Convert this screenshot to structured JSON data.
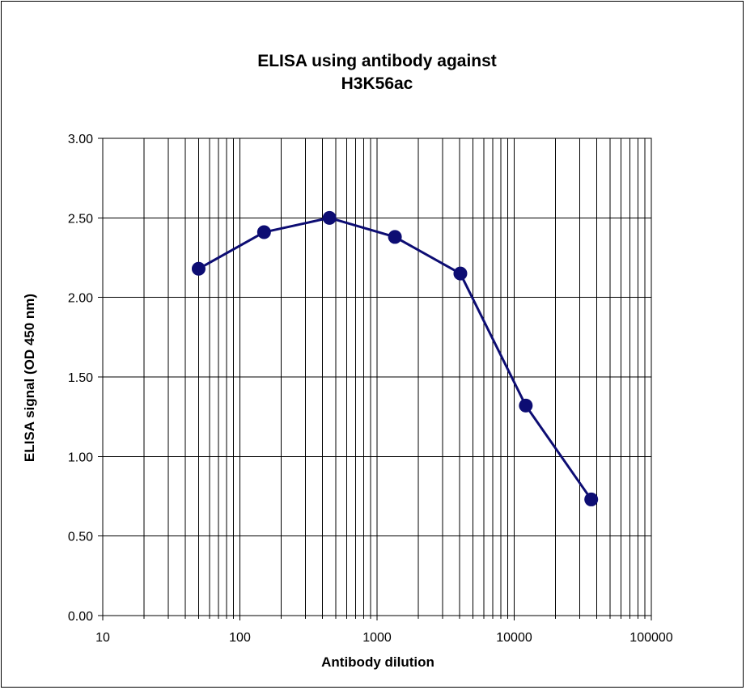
{
  "chart_data": {
    "type": "line",
    "title_lines": [
      "ELISA using antibody against",
      "H3K56ac"
    ],
    "xlabel": "Antibody dilution",
    "ylabel": "ELISA signal (OD 450 nm)",
    "x_scale": "log",
    "xlim": [
      10,
      100000
    ],
    "ylim": [
      0,
      3
    ],
    "x_ticks": [
      10,
      100,
      1000,
      10000,
      100000
    ],
    "x_tick_labels": [
      "10",
      "100",
      "1000",
      "10000",
      "100000"
    ],
    "y_ticks": [
      0,
      0.5,
      1,
      1.5,
      2,
      2.5,
      3
    ],
    "y_tick_labels": [
      "0.00",
      "0.50",
      "1.00",
      "1.50",
      "2.00",
      "2.50",
      "3.00"
    ],
    "grid": true,
    "series": [
      {
        "name": "H3K56ac",
        "color": "#0d0d73",
        "x": [
          50,
          150,
          450,
          1350,
          4050,
          12150,
          36450
        ],
        "y": [
          2.18,
          2.41,
          2.5,
          2.38,
          2.15,
          1.32,
          0.73
        ]
      }
    ]
  }
}
